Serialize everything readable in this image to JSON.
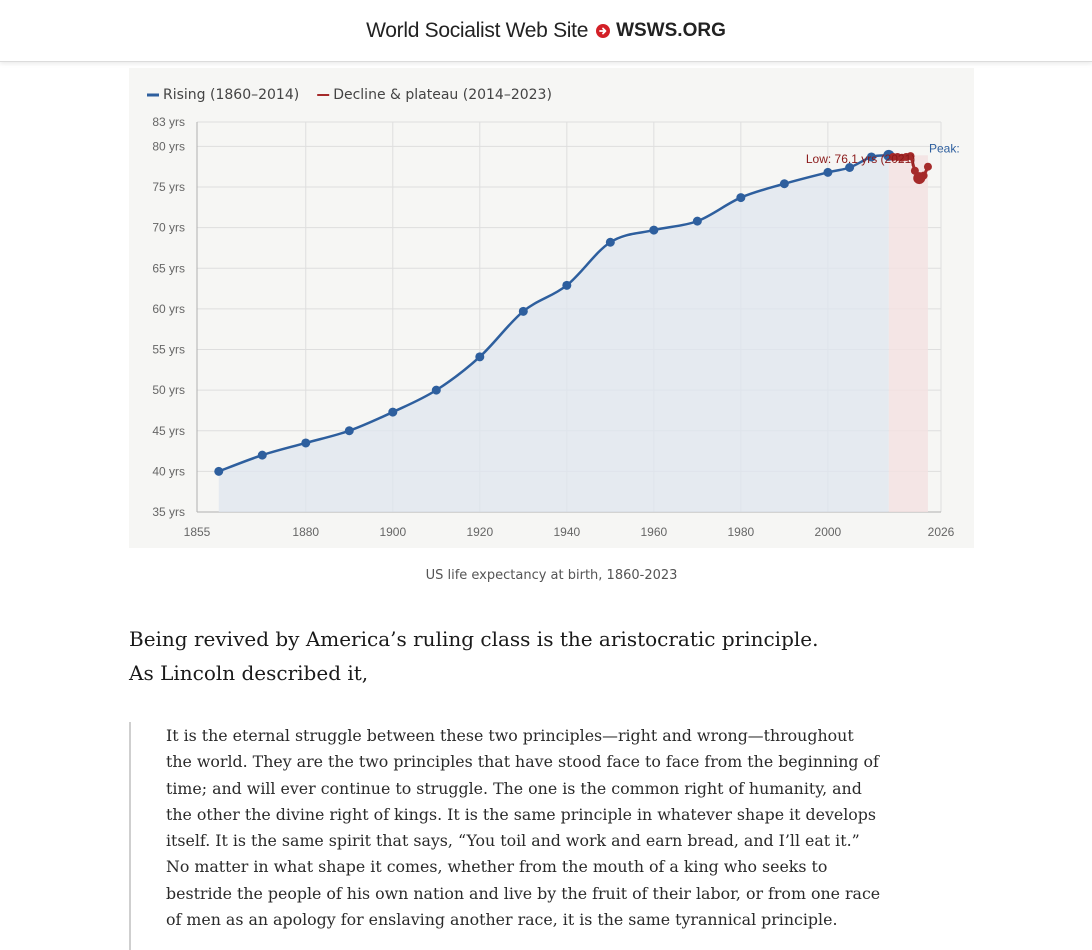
{
  "header": {
    "site_name": "World Socialist Web Site",
    "domain": "WSWS.ORG",
    "brand_color": "#d32027"
  },
  "chart_data": {
    "type": "line",
    "xlim": [
      1855,
      2026
    ],
    "ylim": [
      35,
      83
    ],
    "x_ticks": [
      1855,
      1880,
      1900,
      1920,
      1940,
      1960,
      1980,
      2000,
      2026
    ],
    "y_ticks": [
      {
        "value": 35,
        "label": "35 yrs"
      },
      {
        "value": 40,
        "label": "40 yrs"
      },
      {
        "value": 45,
        "label": "45 yrs"
      },
      {
        "value": 50,
        "label": "50 yrs"
      },
      {
        "value": 55,
        "label": "55 yrs"
      },
      {
        "value": 60,
        "label": "60 yrs"
      },
      {
        "value": 65,
        "label": "65 yrs"
      },
      {
        "value": 70,
        "label": "70 yrs"
      },
      {
        "value": 75,
        "label": "75 yrs"
      },
      {
        "value": 80,
        "label": "80 yrs"
      },
      {
        "value": 83,
        "label": "83 yrs"
      }
    ],
    "grid": true,
    "legend_position": "top-left",
    "series": [
      {
        "name": "Rising (1860–2014)",
        "color": "#2e5f9e",
        "area": true,
        "points": [
          [
            1860,
            40.0
          ],
          [
            1870,
            42.0
          ],
          [
            1880,
            43.5
          ],
          [
            1890,
            45.0
          ],
          [
            1900,
            47.3
          ],
          [
            1910,
            50.0
          ],
          [
            1920,
            54.1
          ],
          [
            1930,
            59.7
          ],
          [
            1940,
            62.9
          ],
          [
            1950,
            68.2
          ],
          [
            1960,
            69.7
          ],
          [
            1970,
            70.8
          ],
          [
            1980,
            73.7
          ],
          [
            1990,
            75.4
          ],
          [
            2000,
            76.8
          ],
          [
            2005,
            77.4
          ],
          [
            2010,
            78.7
          ],
          [
            2014,
            78.9
          ]
        ]
      },
      {
        "name": "Decline & plateau (2014–2023)",
        "color": "#a52a2a",
        "area": true,
        "points": [
          [
            2014,
            78.9
          ],
          [
            2015,
            78.7
          ],
          [
            2016,
            78.7
          ],
          [
            2017,
            78.6
          ],
          [
            2018,
            78.7
          ],
          [
            2019,
            78.8
          ],
          [
            2020,
            77.0
          ],
          [
            2021,
            76.1
          ],
          [
            2022,
            76.4
          ],
          [
            2023,
            77.5
          ]
        ]
      }
    ],
    "annotations": [
      {
        "text": "Low: 76.1 yrs (2021)",
        "x": 2021,
        "y": 76.1,
        "color": "#8b1a1a"
      },
      {
        "text": "Peak:",
        "x": 2014,
        "y": 78.9,
        "color": "#2e5f9e"
      }
    ]
  },
  "caption": "US life expectancy at birth, 1860-2023",
  "lead_text": "Being revived by America’s ruling class is the aristocratic principle. As Lincoln described it,",
  "quote_text": "It is the eternal struggle between these two principles—right and wrong—throughout the world. They are the two principles that have stood face to face from the beginning of time; and will ever continue to struggle. The one is the common right of humanity, and the other the divine right of kings. It is the same principle in whatever shape it develops itself. It is the same spirit that says, “You toil and work and earn bread, and I’ll eat it.” No matter in what shape it comes, whether from the mouth of a king who seeks to bestride the people of his own nation and live by the fruit of their labor, or from one race of men as an apology for enslaving another race, it is the same tyrannical principle."
}
